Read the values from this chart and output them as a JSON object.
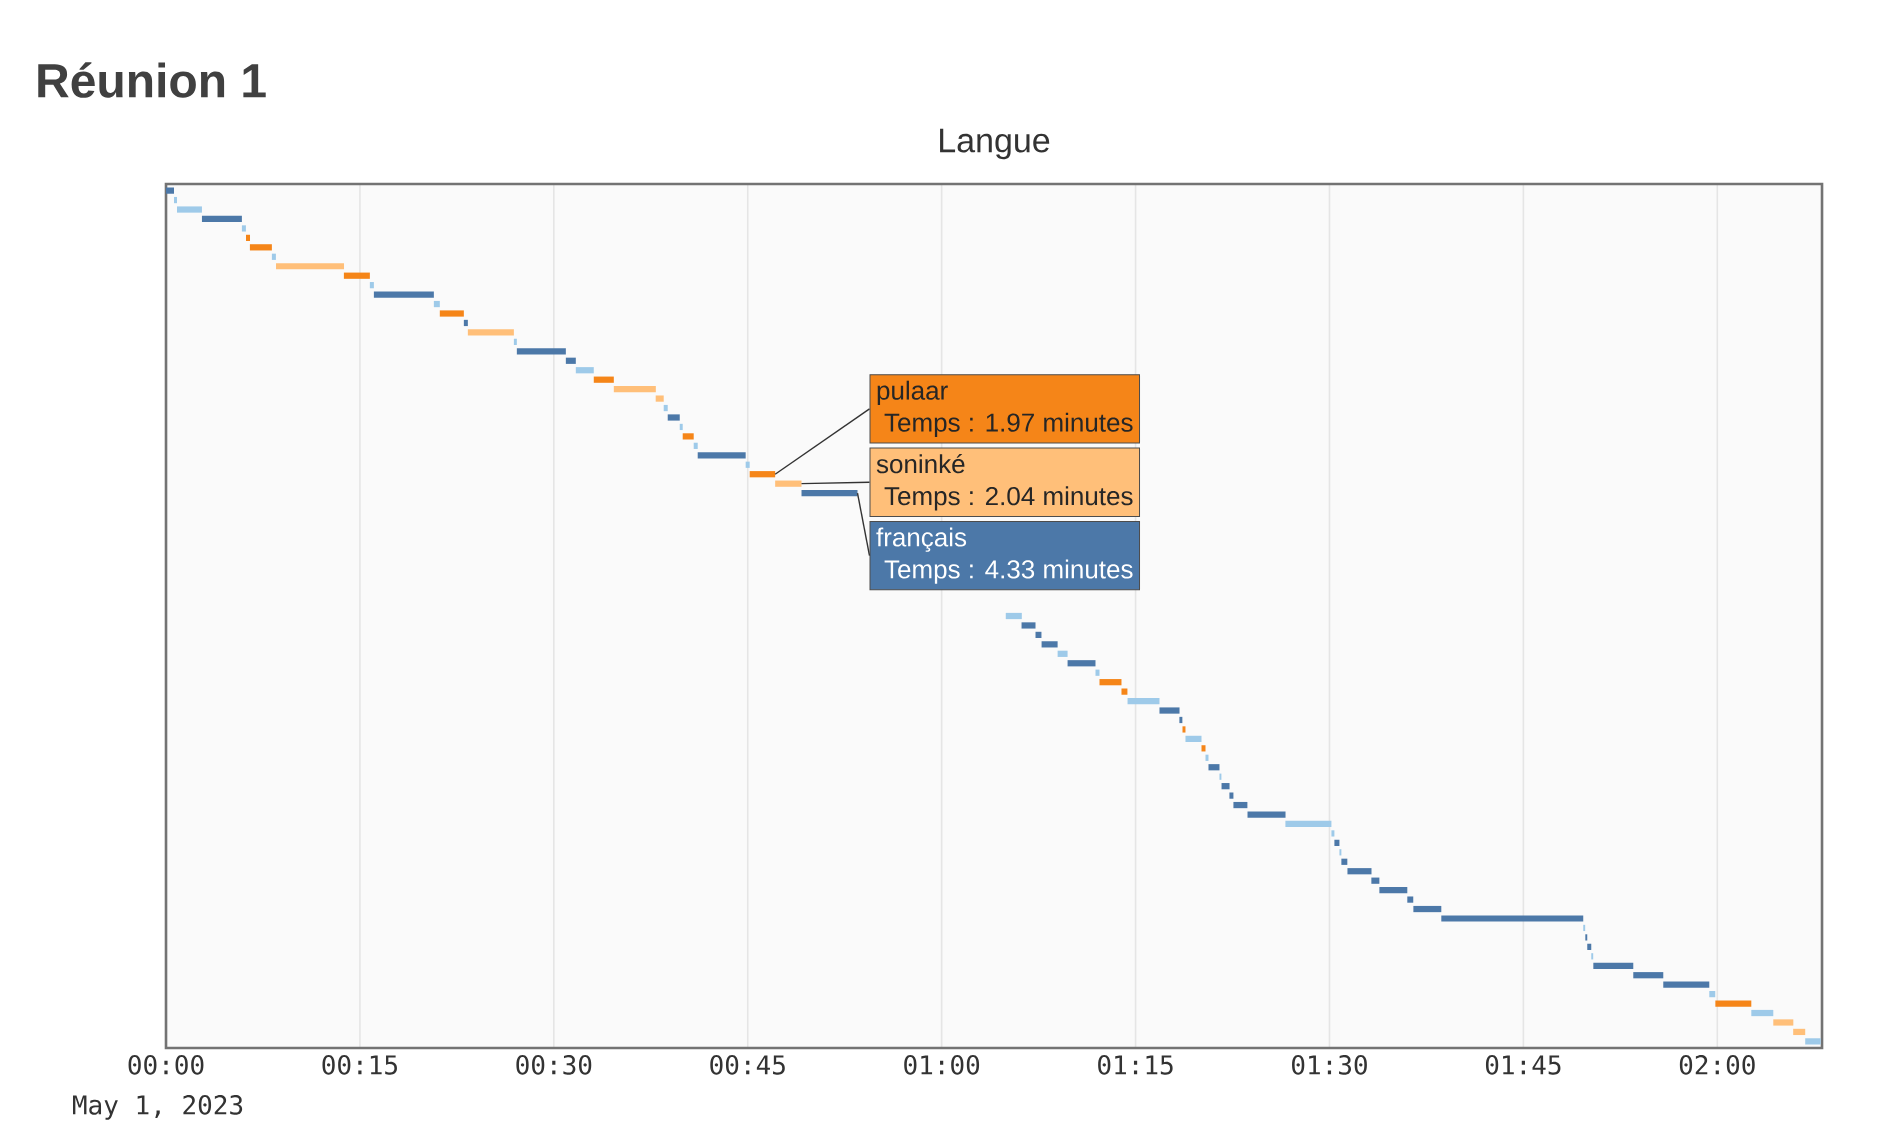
{
  "chart_data": {
    "type": "bar",
    "orientation": "horizontal",
    "title": "Réunion 1",
    "subtitle": "Langue",
    "categories": [
      null,
      null,
      null,
      null,
      null,
      null,
      null,
      null,
      null,
      null,
      null,
      null,
      null,
      null,
      null,
      null,
      null,
      null,
      null,
      null,
      null,
      null,
      null,
      null,
      null,
      null,
      null,
      null,
      null,
      null,
      null,
      null,
      null,
      null,
      null,
      null,
      null,
      null,
      null,
      null,
      null,
      null,
      null,
      null,
      null,
      null,
      null,
      null,
      null,
      null,
      null,
      null,
      null,
      null,
      null,
      null,
      null,
      null,
      null,
      null,
      null,
      null,
      null,
      null,
      null,
      null,
      null,
      null,
      null,
      null,
      null,
      null,
      null,
      null,
      null,
      null,
      null,
      null,
      null,
      null,
      null,
      null,
      null,
      null,
      null,
      null,
      null,
      null,
      null,
      null,
      null
    ],
    "base": [
      0,
      0.62,
      0.85,
      2.78,
      5.87,
      6.19,
      6.49,
      8.19,
      8.51,
      13.76,
      15.77,
      16.08,
      20.72,
      21.18,
      23.04,
      23.35,
      26.91,
      27.14,
      30.93,
      31.7,
      33.09,
      34.64,
      37.88,
      38.5,
      38.81,
      39.74,
      39.97,
      40.82,
      41.13,
      44.84,
      45.15,
      47.12,
      49.16,
      null,
      null,
      null,
      null,
      null,
      null,
      null,
      null,
      null,
      null,
      null,
      null,
      64.96,
      66.18,
      67.26,
      67.73,
      68.97,
      69.74,
      71.9,
      72.21,
      73.91,
      74.38,
      76.85,
      78.39,
      78.63,
      78.86,
      80.1,
      80.41,
      80.64,
      81.49,
      81.65,
      82.26,
      82.57,
      83.66,
      86.59,
      90.15,
      90.38,
      90.77,
      90.92,
      91.39,
      93.24,
      93.86,
      96.02,
      96.49,
      98.65,
      109.63,
      109.79,
      109.94,
      110.25,
      110.41,
      113.5,
      115.82,
      119.38,
      119.85,
      122.63,
      124.33,
      125.87,
      126.8
    ],
    "values": [
      0.62,
      0.23,
      1.93,
      3.09,
      0.31,
      0.31,
      1.7,
      0.31,
      5.26,
      2.01,
      0.31,
      4.64,
      0.46,
      1.86,
      0.31,
      3.56,
      0.23,
      3.79,
      0.77,
      1.39,
      1.55,
      3.25,
      0.62,
      0.31,
      0.93,
      0.23,
      0.85,
      0.31,
      3.71,
      0.31,
      1.97,
      2.04,
      4.33,
      null,
      null,
      null,
      null,
      null,
      null,
      null,
      null,
      null,
      null,
      null,
      null,
      1.24,
      1.08,
      0.46,
      1.24,
      0.77,
      2.16,
      0.31,
      1.7,
      0.46,
      2.47,
      1.55,
      0.23,
      0.23,
      1.24,
      0.31,
      0.23,
      0.85,
      0.15,
      0.62,
      0.31,
      1.08,
      2.94,
      3.56,
      0.23,
      0.39,
      0.15,
      0.46,
      1.86,
      0.62,
      2.16,
      0.46,
      2.16,
      10.98,
      0.15,
      0.15,
      0.31,
      0.15,
      3.09,
      2.32,
      3.56,
      0.46,
      2.78,
      1.7,
      1.55,
      0.93,
      1.2
    ],
    "colors": [
      "#4c78a8",
      "#9ecae9",
      "#9ecae9",
      "#4c78a8",
      "#9ecae9",
      "#f58518",
      "#f58518",
      "#9ecae9",
      "#ffbf79",
      "#f58518",
      "#9ecae9",
      "#4c78a8",
      "#9ecae9",
      "#f58518",
      "#4c78a8",
      "#ffbf79",
      "#9ecae9",
      "#4c78a8",
      "#4c78a8",
      "#9ecae9",
      "#f58518",
      "#ffbf79",
      "#ffbf79",
      "#9ecae9",
      "#4c78a8",
      "#9ecae9",
      "#f58518",
      "#9ecae9",
      "#4c78a8",
      "#9ecae9",
      "#f58518",
      "#ffbf79",
      "#4c78a8",
      null,
      null,
      null,
      null,
      null,
      null,
      null,
      null,
      null,
      null,
      null,
      null,
      "#9ecae9",
      "#4c78a8",
      "#4c78a8",
      "#4c78a8",
      "#9ecae9",
      "#4c78a8",
      "#9ecae9",
      "#f58518",
      "#f58518",
      "#9ecae9",
      "#4c78a8",
      "#4c78a8",
      "#f58518",
      "#9ecae9",
      "#f58518",
      "#9ecae9",
      "#4c78a8",
      "#9ecae9",
      "#4c78a8",
      "#4c78a8",
      "#4c78a8",
      "#4c78a8",
      "#9ecae9",
      "#9ecae9",
      "#4c78a8",
      "#9ecae9",
      "#4c78a8",
      "#4c78a8",
      "#4c78a8",
      "#4c78a8",
      "#4c78a8",
      "#4c78a8",
      "#4c78a8",
      "#9ecae9",
      "#4c78a8",
      "#4c78a8",
      "#9ecae9",
      "#4c78a8",
      "#4c78a8",
      "#4c78a8",
      "#9ecae9",
      "#f58518",
      "#9ecae9",
      "#ffbf79",
      "#ffbf79",
      "#9ecae9"
    ],
    "xlim": [
      0,
      128.1
    ],
    "xticks": [
      {
        "value": 0,
        "label": "00:00"
      },
      {
        "value": 15,
        "label": "00:15"
      },
      {
        "value": 30,
        "label": "00:30"
      },
      {
        "value": 45,
        "label": "00:45"
      },
      {
        "value": 60,
        "label": "01:00"
      },
      {
        "value": 75,
        "label": "01:15"
      },
      {
        "value": 90,
        "label": "01:30"
      },
      {
        "value": 105,
        "label": "01:45"
      },
      {
        "value": 120,
        "label": "02:00"
      }
    ],
    "grid": "x",
    "annotations": [
      "May 1, 2023",
      "pulaar",
      "Temps : 1.97 minutes",
      "soninké",
      "Temps : 2.04 minutes",
      "français",
      "Temps : 4.33 minutes"
    ]
  }
}
